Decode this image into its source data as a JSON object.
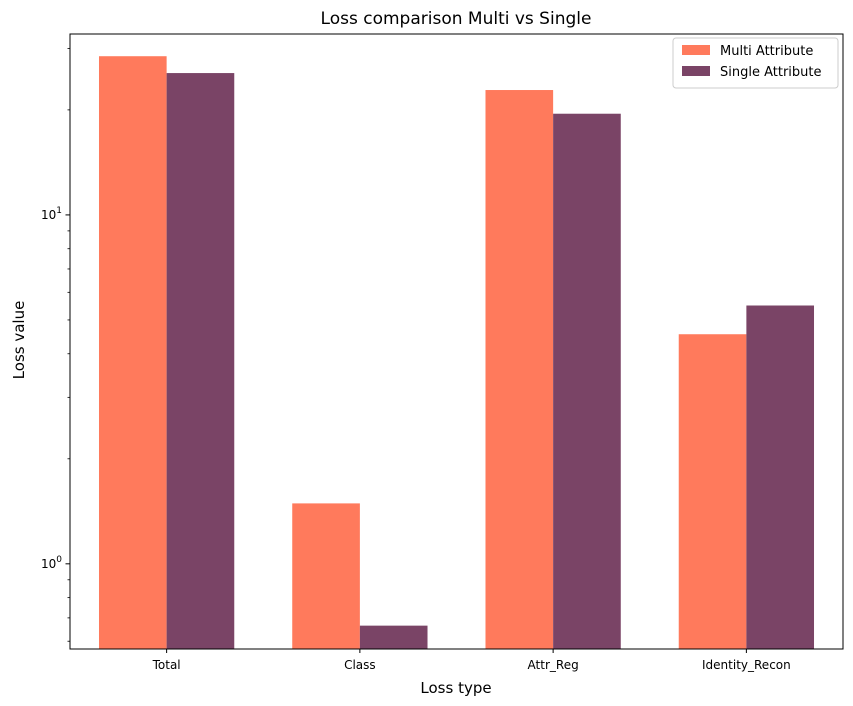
{
  "chart_data": {
    "type": "bar",
    "title": "Loss comparison Multi vs Single",
    "xlabel": "Loss type",
    "ylabel": "Loss value",
    "yscale": "log",
    "ylim": [
      0.57,
      33
    ],
    "categories": [
      "Total",
      "Class",
      "Attr_Reg",
      "Identity_Recon"
    ],
    "series": [
      {
        "name": "Multi Attribute",
        "color": "#ff7a5c",
        "values": [
          28.5,
          1.49,
          22.8,
          4.55
        ]
      },
      {
        "name": "Single Attribute",
        "color": "#7a4466",
        "values": [
          25.5,
          0.665,
          19.5,
          5.5
        ]
      }
    ],
    "y_major_ticks": [
      {
        "value": 1,
        "base": "10",
        "exp": "0"
      },
      {
        "value": 10,
        "base": "10",
        "exp": "1"
      }
    ],
    "y_minor_ticks": [
      0.6,
      0.7,
      0.8,
      0.9,
      2,
      3,
      4,
      5,
      6,
      7,
      8,
      9,
      20,
      30
    ],
    "legend": {
      "position": "top-right"
    },
    "grid": false
  }
}
